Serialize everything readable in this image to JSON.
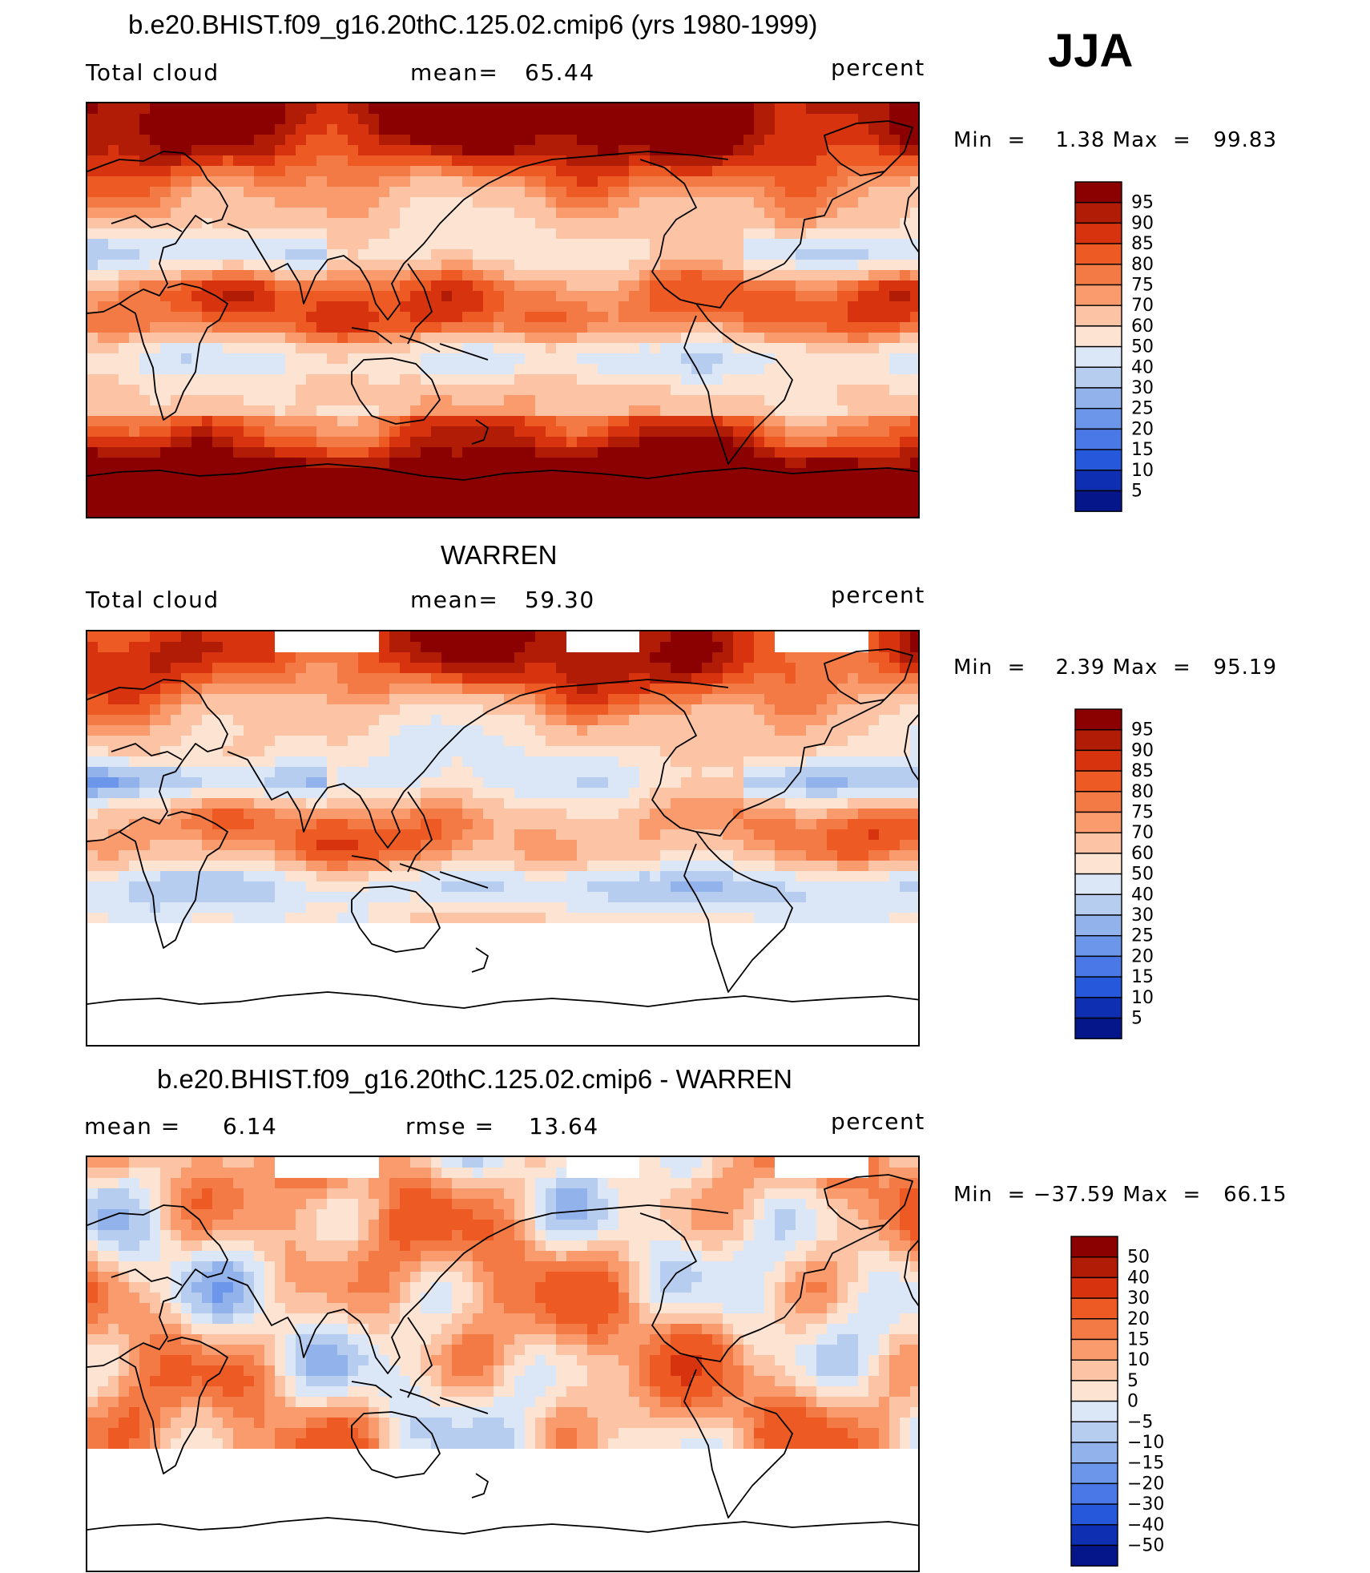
{
  "season": "JJA",
  "panels": [
    {
      "title": "b.e20.BHIST.f09_g16.20thC.125.02.cmip6 (yrs 1980-1999)",
      "left": "Total cloud",
      "center_label": "mean=",
      "center_value": "65.44",
      "right_label": "",
      "right_value": "",
      "units": "percent",
      "min_label": "Min  =",
      "min_value": "1.38",
      "max_label": "Max  =",
      "max_value": "99.83",
      "field": "model",
      "colorbar_levels": [
        "95",
        "90",
        "85",
        "80",
        "75",
        "70",
        "60",
        "50",
        "40",
        "30",
        "25",
        "20",
        "15",
        "10",
        "5"
      ],
      "colorbar_colors": [
        "#8b0000",
        "#b01c05",
        "#d8330f",
        "#ee5a24",
        "#f37a45",
        "#f99b6d",
        "#fcc4a4",
        "#fde4d2",
        "#dbe6f6",
        "#b7cdf0",
        "#92b2ec",
        "#6c96ea",
        "#4a78e6",
        "#2658dc",
        "#0f2fb3",
        "#05158a"
      ]
    },
    {
      "title": "WARREN",
      "left": "Total cloud",
      "center_label": "mean=",
      "center_value": "59.30",
      "right_label": "",
      "right_value": "",
      "units": "percent",
      "min_label": "Min  =",
      "min_value": "2.39",
      "max_label": "Max  =",
      "max_value": "95.19",
      "field": "obs",
      "colorbar_levels": [
        "95",
        "90",
        "85",
        "80",
        "75",
        "70",
        "60",
        "50",
        "40",
        "30",
        "25",
        "20",
        "15",
        "10",
        "5"
      ],
      "colorbar_colors": [
        "#8b0000",
        "#b01c05",
        "#d8330f",
        "#ee5a24",
        "#f37a45",
        "#f99b6d",
        "#fcc4a4",
        "#fde4d2",
        "#dbe6f6",
        "#b7cdf0",
        "#92b2ec",
        "#6c96ea",
        "#4a78e6",
        "#2658dc",
        "#0f2fb3",
        "#05158a"
      ]
    },
    {
      "title": "b.e20.BHIST.f09_g16.20thC.125.02.cmip6 - WARREN",
      "left": "mean =",
      "center_label": "6.14",
      "center_value": "",
      "right_label": "rmse =",
      "right_value": "13.64",
      "units": "percent",
      "min_label": "Min  =",
      "min_value": "−37.59",
      "max_label": "Max  =",
      "max_value": "66.15",
      "field": "diff",
      "colorbar_levels": [
        "50",
        "40",
        "30",
        "20",
        "15",
        "10",
        "5",
        "0",
        "−5",
        "−10",
        "−15",
        "−20",
        "−30",
        "−40",
        "−50"
      ],
      "colorbar_colors": [
        "#8b0000",
        "#b01c05",
        "#d8330f",
        "#ee5a24",
        "#f37a45",
        "#f99b6d",
        "#fcc4a4",
        "#fde4d2",
        "#dbe6f6",
        "#b7cdf0",
        "#92b2ec",
        "#6c96ea",
        "#4a78e6",
        "#2658dc",
        "#0f2fb3",
        "#05158a"
      ]
    }
  ]
}
